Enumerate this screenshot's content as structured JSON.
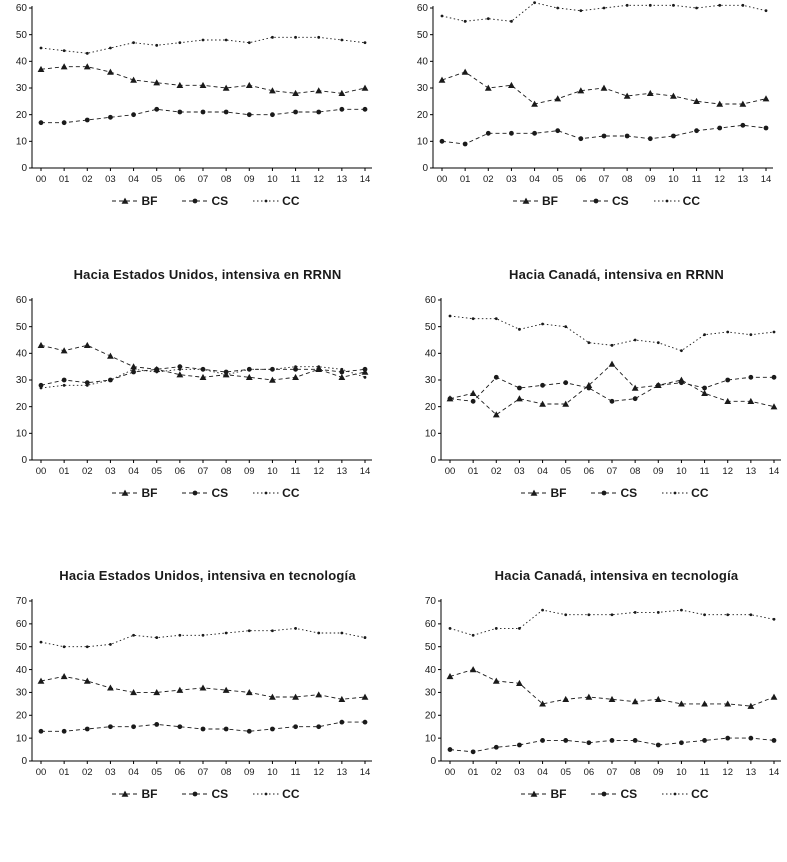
{
  "figure": {
    "background": "#ffffff",
    "axis_color": "#000000",
    "line_color": "#1a1a1a"
  },
  "chart_data": [
    {
      "type": "line",
      "title": "",
      "categories": [
        "00",
        "01",
        "02",
        "03",
        "04",
        "05",
        "06",
        "07",
        "08",
        "09",
        "10",
        "11",
        "12",
        "13",
        "14"
      ],
      "ylim": [
        0,
        60
      ],
      "ytick_step": 10,
      "grid": false,
      "legend_position": "bottom",
      "series": [
        {
          "name": "BF",
          "marker": "triangle",
          "dash": "4,3",
          "values": [
            37,
            38,
            38,
            36,
            33,
            32,
            31,
            31,
            30,
            31,
            29,
            28,
            29,
            28,
            30
          ]
        },
        {
          "name": "CS",
          "marker": "circle",
          "dash": "4,3",
          "values": [
            17,
            17,
            18,
            19,
            20,
            22,
            21,
            21,
            21,
            20,
            20,
            21,
            21,
            22,
            22
          ]
        },
        {
          "name": "CC",
          "marker": "dot",
          "dash": "1.5,2.5",
          "values": [
            45,
            44,
            43,
            45,
            47,
            46,
            47,
            48,
            48,
            47,
            49,
            49,
            49,
            48,
            47
          ]
        }
      ]
    },
    {
      "type": "line",
      "title": "",
      "categories": [
        "00",
        "01",
        "02",
        "03",
        "04",
        "05",
        "06",
        "07",
        "08",
        "09",
        "10",
        "11",
        "12",
        "13",
        "14"
      ],
      "ylim": [
        0,
        60
      ],
      "ytick_step": 10,
      "grid": false,
      "legend_position": "bottom",
      "series": [
        {
          "name": "BF",
          "marker": "triangle",
          "dash": "4,3",
          "values": [
            33,
            36,
            30,
            31,
            24,
            26,
            29,
            30,
            27,
            28,
            27,
            25,
            24,
            24,
            26
          ]
        },
        {
          "name": "CS",
          "marker": "circle",
          "dash": "4,3",
          "values": [
            10,
            9,
            13,
            13,
            13,
            14,
            11,
            12,
            12,
            11,
            12,
            14,
            15,
            16,
            15
          ]
        },
        {
          "name": "CC",
          "marker": "dot",
          "dash": "1.5,2.5",
          "values": [
            57,
            55,
            56,
            55,
            62,
            60,
            59,
            60,
            61,
            61,
            61,
            60,
            61,
            61,
            59
          ]
        }
      ]
    },
    {
      "type": "line",
      "title": "Hacia Estados Unidos, intensiva en RRNN",
      "categories": [
        "00",
        "01",
        "02",
        "03",
        "04",
        "05",
        "06",
        "07",
        "08",
        "09",
        "10",
        "11",
        "12",
        "13",
        "14"
      ],
      "ylim": [
        0,
        60
      ],
      "ytick_step": 10,
      "grid": false,
      "legend_position": "bottom",
      "series": [
        {
          "name": "BF",
          "marker": "triangle",
          "dash": "4,3",
          "values": [
            43,
            41,
            43,
            39,
            35,
            34,
            32,
            31,
            32,
            31,
            30,
            31,
            34,
            31,
            33
          ]
        },
        {
          "name": "CS",
          "marker": "circle",
          "dash": "4,3",
          "values": [
            28,
            30,
            29,
            30,
            33,
            34,
            35,
            34,
            33,
            34,
            34,
            34,
            34,
            33,
            34
          ]
        },
        {
          "name": "CC",
          "marker": "dot",
          "dash": "1.5,2.5",
          "values": [
            27,
            28,
            28,
            30,
            34,
            33,
            34,
            34,
            32,
            34,
            34,
            35,
            35,
            34,
            31
          ]
        }
      ]
    },
    {
      "type": "line",
      "title": "Hacia Canadá, intensiva en RRNN",
      "categories": [
        "00",
        "01",
        "02",
        "03",
        "04",
        "05",
        "06",
        "07",
        "08",
        "09",
        "10",
        "11",
        "12",
        "13",
        "14"
      ],
      "ylim": [
        0,
        60
      ],
      "ytick_step": 10,
      "grid": false,
      "legend_position": "bottom",
      "series": [
        {
          "name": "BF",
          "marker": "triangle",
          "dash": "4,3",
          "values": [
            23,
            25,
            17,
            23,
            21,
            21,
            28,
            36,
            27,
            28,
            30,
            25,
            22,
            22,
            20
          ]
        },
        {
          "name": "CS",
          "marker": "circle",
          "dash": "4,3",
          "values": [
            23,
            22,
            31,
            27,
            28,
            29,
            27,
            22,
            23,
            28,
            29,
            27,
            30,
            31,
            31
          ]
        },
        {
          "name": "CC",
          "marker": "dot",
          "dash": "1.5,2.5",
          "values": [
            54,
            53,
            53,
            49,
            51,
            50,
            44,
            43,
            45,
            44,
            41,
            47,
            48,
            47,
            48
          ]
        }
      ]
    },
    {
      "type": "line",
      "title": "Hacia Estados Unidos, intensiva en tecnología",
      "categories": [
        "00",
        "01",
        "02",
        "03",
        "04",
        "05",
        "06",
        "07",
        "08",
        "09",
        "10",
        "11",
        "12",
        "13",
        "14"
      ],
      "ylim": [
        0,
        70
      ],
      "ytick_step": 10,
      "grid": false,
      "legend_position": "bottom",
      "series": [
        {
          "name": "BF",
          "marker": "triangle",
          "dash": "4,3",
          "values": [
            35,
            37,
            35,
            32,
            30,
            30,
            31,
            32,
            31,
            30,
            28,
            28,
            29,
            27,
            28
          ]
        },
        {
          "name": "CS",
          "marker": "circle",
          "dash": "4,3",
          "values": [
            13,
            13,
            14,
            15,
            15,
            16,
            15,
            14,
            14,
            13,
            14,
            15,
            15,
            17,
            17
          ]
        },
        {
          "name": "CC",
          "marker": "dot",
          "dash": "1.5,2.5",
          "values": [
            52,
            50,
            50,
            51,
            55,
            54,
            55,
            55,
            56,
            57,
            57,
            58,
            56,
            56,
            54
          ]
        }
      ]
    },
    {
      "type": "line",
      "title": "Hacia Canadá, intensiva en tecnología",
      "categories": [
        "00",
        "01",
        "02",
        "03",
        "04",
        "05",
        "06",
        "07",
        "08",
        "09",
        "10",
        "11",
        "12",
        "13",
        "14"
      ],
      "ylim": [
        0,
        70
      ],
      "ytick_step": 10,
      "grid": false,
      "legend_position": "bottom",
      "series": [
        {
          "name": "BF",
          "marker": "triangle",
          "dash": "4,3",
          "values": [
            37,
            40,
            35,
            34,
            25,
            27,
            28,
            27,
            26,
            27,
            25,
            25,
            25,
            24,
            28
          ]
        },
        {
          "name": "CS",
          "marker": "circle",
          "dash": "4,3",
          "values": [
            5,
            4,
            6,
            7,
            9,
            9,
            8,
            9,
            9,
            7,
            8,
            9,
            10,
            10,
            9
          ]
        },
        {
          "name": "CC",
          "marker": "dot",
          "dash": "1.5,2.5",
          "values": [
            58,
            55,
            58,
            58,
            66,
            64,
            64,
            64,
            65,
            65,
            66,
            64,
            64,
            64,
            62
          ]
        }
      ]
    }
  ]
}
